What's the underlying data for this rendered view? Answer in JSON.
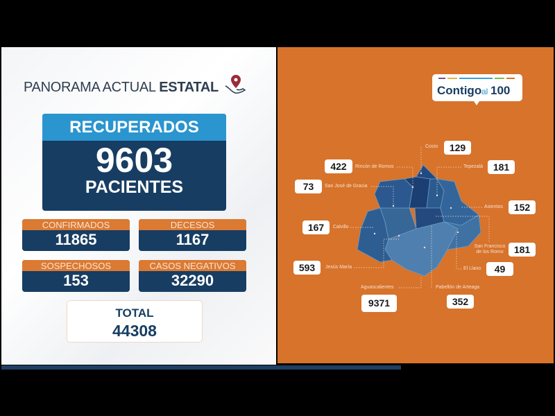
{
  "header": {
    "title_regular": "PANORAMA ACTUAL",
    "title_bold": "ESTATAL",
    "emblem_icon": "location-pin-hand-icon"
  },
  "recuperados": {
    "label": "RECUPERADOS",
    "value": "9603",
    "unit": "PACIENTES"
  },
  "stats": [
    {
      "label": "CONFIRMADOS",
      "value": "11865"
    },
    {
      "label": "DECESOS",
      "value": "1167"
    },
    {
      "label": "SOSPECHOSOS",
      "value": "153"
    },
    {
      "label": "CASOS NEGATIVOS",
      "value": "32290"
    }
  ],
  "total": {
    "label": "TOTAL",
    "value": "44308"
  },
  "logo": {
    "text": "Contigo al 100",
    "stripe_colors": [
      "#7b4f7d",
      "#e0b840",
      "#3ba0d8",
      "#7cbf4a",
      "#d7732b"
    ]
  },
  "municipalities": [
    {
      "name": "Cosío",
      "value": "129"
    },
    {
      "name": "Rincón de Romos",
      "value": "422"
    },
    {
      "name": "Tepezalá",
      "value": "181"
    },
    {
      "name": "San José de Gracia",
      "value": "73"
    },
    {
      "name": "Asientos",
      "value": "152"
    },
    {
      "name": "Calvillo",
      "value": "167"
    },
    {
      "name": "San Francisco de los Romo",
      "value": "181"
    },
    {
      "name": "Jesús María",
      "value": "593"
    },
    {
      "name": "El Llano",
      "value": "49"
    },
    {
      "name": "Aguascalientes",
      "value": "9371"
    },
    {
      "name": "Pabellón de Arteaga",
      "value": "352"
    }
  ],
  "colors": {
    "orange": "#d7732b",
    "navy": "#173d62",
    "light_blue": "#2a95cf"
  }
}
